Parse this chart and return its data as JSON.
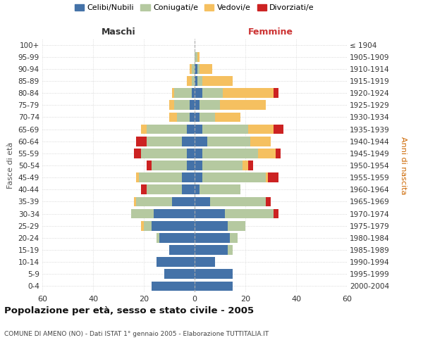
{
  "age_groups": [
    "0-4",
    "5-9",
    "10-14",
    "15-19",
    "20-24",
    "25-29",
    "30-34",
    "35-39",
    "40-44",
    "45-49",
    "50-54",
    "55-59",
    "60-64",
    "65-69",
    "70-74",
    "75-79",
    "80-84",
    "85-89",
    "90-94",
    "95-99",
    "100+"
  ],
  "birth_years": [
    "2000-2004",
    "1995-1999",
    "1990-1994",
    "1985-1989",
    "1980-1984",
    "1975-1979",
    "1970-1974",
    "1965-1969",
    "1960-1964",
    "1955-1959",
    "1950-1954",
    "1945-1949",
    "1940-1944",
    "1935-1939",
    "1930-1934",
    "1925-1929",
    "1920-1924",
    "1915-1919",
    "1910-1914",
    "1905-1909",
    "≤ 1904"
  ],
  "colors": {
    "celibi": "#4472a8",
    "coniugati": "#b5c9a0",
    "vedovi": "#f5c060",
    "divorziati": "#cc2222"
  },
  "maschi": {
    "celibi": [
      17,
      12,
      15,
      10,
      14,
      17,
      16,
      9,
      5,
      5,
      3,
      3,
      5,
      3,
      2,
      2,
      1,
      0,
      0,
      0,
      0
    ],
    "coniugati": [
      0,
      0,
      0,
      0,
      1,
      3,
      9,
      14,
      14,
      17,
      14,
      18,
      14,
      16,
      5,
      6,
      7,
      1,
      1,
      0,
      0
    ],
    "vedovi": [
      0,
      0,
      0,
      0,
      0,
      1,
      0,
      1,
      0,
      1,
      0,
      0,
      0,
      2,
      3,
      2,
      1,
      2,
      1,
      0,
      0
    ],
    "divorziati": [
      0,
      0,
      0,
      0,
      0,
      0,
      0,
      0,
      2,
      0,
      2,
      3,
      4,
      0,
      0,
      0,
      0,
      0,
      0,
      0,
      0
    ]
  },
  "femmine": {
    "celibi": [
      15,
      15,
      8,
      13,
      14,
      13,
      12,
      6,
      2,
      3,
      3,
      3,
      5,
      3,
      2,
      2,
      3,
      1,
      1,
      0,
      0
    ],
    "coniugati": [
      0,
      0,
      0,
      2,
      3,
      7,
      19,
      22,
      16,
      25,
      16,
      22,
      17,
      18,
      6,
      8,
      8,
      2,
      1,
      1,
      0
    ],
    "vedovi": [
      0,
      0,
      0,
      0,
      0,
      0,
      0,
      0,
      0,
      1,
      2,
      7,
      8,
      10,
      10,
      18,
      20,
      12,
      5,
      1,
      0
    ],
    "divorziati": [
      0,
      0,
      0,
      0,
      0,
      0,
      2,
      2,
      0,
      4,
      2,
      2,
      0,
      4,
      0,
      0,
      2,
      0,
      0,
      0,
      0
    ]
  },
  "title": "Popolazione per età, sesso e stato civile - 2005",
  "subtitle": "COMUNE DI AMENO (NO) - Dati ISTAT 1° gennaio 2005 - Elaborazione TUTTITALIA.IT",
  "xlabel_left": "Maschi",
  "xlabel_right": "Femmine",
  "ylabel_left": "Fasce di età",
  "ylabel_right": "Anni di nascita",
  "legend_labels": [
    "Celibi/Nubili",
    "Coniugati/e",
    "Vedovi/e",
    "Divorziati/e"
  ],
  "xlim": 60,
  "xticks": [
    60,
    40,
    20,
    0,
    20,
    40,
    60
  ]
}
